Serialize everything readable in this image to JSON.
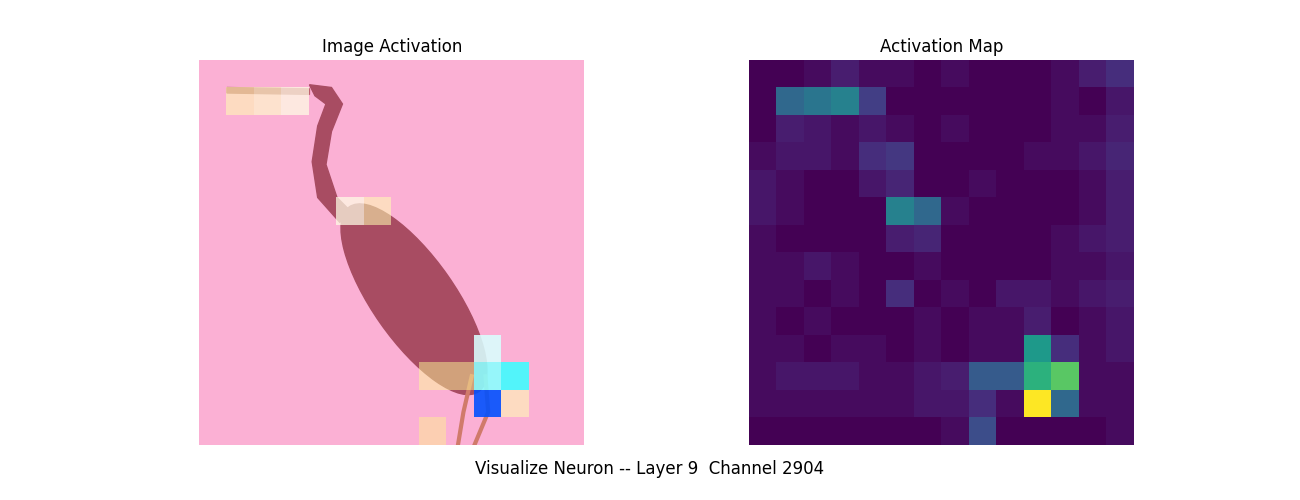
{
  "caption": "Visualize Neuron -- Layer 9  Channel 2904",
  "chart_data": [
    {
      "type": "image_overlay",
      "title": "Image Activation",
      "tick_labels": false
    },
    {
      "type": "heatmap",
      "title": "Activation Map",
      "tick_labels": false,
      "cells": [
        [
          0.02,
          0.02,
          0.05,
          0.1,
          0.05,
          0.05,
          0.02,
          0.05,
          0.02,
          0.02,
          0.02,
          0.05,
          0.1,
          0.15
        ],
        [
          0.02,
          0.35,
          0.4,
          0.45,
          0.2,
          0.02,
          0.02,
          0.02,
          0.02,
          0.02,
          0.02,
          0.05,
          0.02,
          0.08
        ],
        [
          0.02,
          0.1,
          0.08,
          0.05,
          0.08,
          0.05,
          0.02,
          0.05,
          0.02,
          0.02,
          0.02,
          0.05,
          0.05,
          0.1
        ],
        [
          0.05,
          0.08,
          0.08,
          0.05,
          0.15,
          0.18,
          0.02,
          0.02,
          0.02,
          0.02,
          0.05,
          0.05,
          0.08,
          0.12
        ],
        [
          0.08,
          0.05,
          0.02,
          0.02,
          0.08,
          0.12,
          0.02,
          0.02,
          0.05,
          0.02,
          0.02,
          0.02,
          0.05,
          0.1
        ],
        [
          0.08,
          0.05,
          0.02,
          0.02,
          0.02,
          0.45,
          0.35,
          0.05,
          0.02,
          0.02,
          0.02,
          0.02,
          0.05,
          0.1
        ],
        [
          0.05,
          0.02,
          0.02,
          0.02,
          0.02,
          0.1,
          0.12,
          0.02,
          0.02,
          0.02,
          0.02,
          0.05,
          0.08,
          0.1
        ],
        [
          0.05,
          0.05,
          0.08,
          0.05,
          0.02,
          0.02,
          0.05,
          0.02,
          0.02,
          0.02,
          0.02,
          0.05,
          0.05,
          0.08
        ],
        [
          0.05,
          0.05,
          0.02,
          0.05,
          0.02,
          0.15,
          0.02,
          0.05,
          0.02,
          0.08,
          0.08,
          0.05,
          0.08,
          0.1
        ],
        [
          0.05,
          0.02,
          0.05,
          0.02,
          0.02,
          0.02,
          0.05,
          0.02,
          0.05,
          0.05,
          0.1,
          0.02,
          0.05,
          0.08
        ],
        [
          0.05,
          0.05,
          0.02,
          0.05,
          0.05,
          0.02,
          0.05,
          0.02,
          0.05,
          0.05,
          0.55,
          0.15,
          0.05,
          0.08
        ],
        [
          0.05,
          0.08,
          0.08,
          0.08,
          0.05,
          0.05,
          0.08,
          0.1,
          0.3,
          0.3,
          0.65,
          0.75,
          0.05,
          0.05
        ],
        [
          0.05,
          0.05,
          0.05,
          0.05,
          0.05,
          0.05,
          0.08,
          0.08,
          0.15,
          0.05,
          1.0,
          0.35,
          0.05,
          0.05
        ],
        [
          0.02,
          0.02,
          0.02,
          0.02,
          0.02,
          0.02,
          0.02,
          0.05,
          0.25,
          0.02,
          0.02,
          0.02,
          0.02,
          0.05
        ]
      ]
    }
  ]
}
